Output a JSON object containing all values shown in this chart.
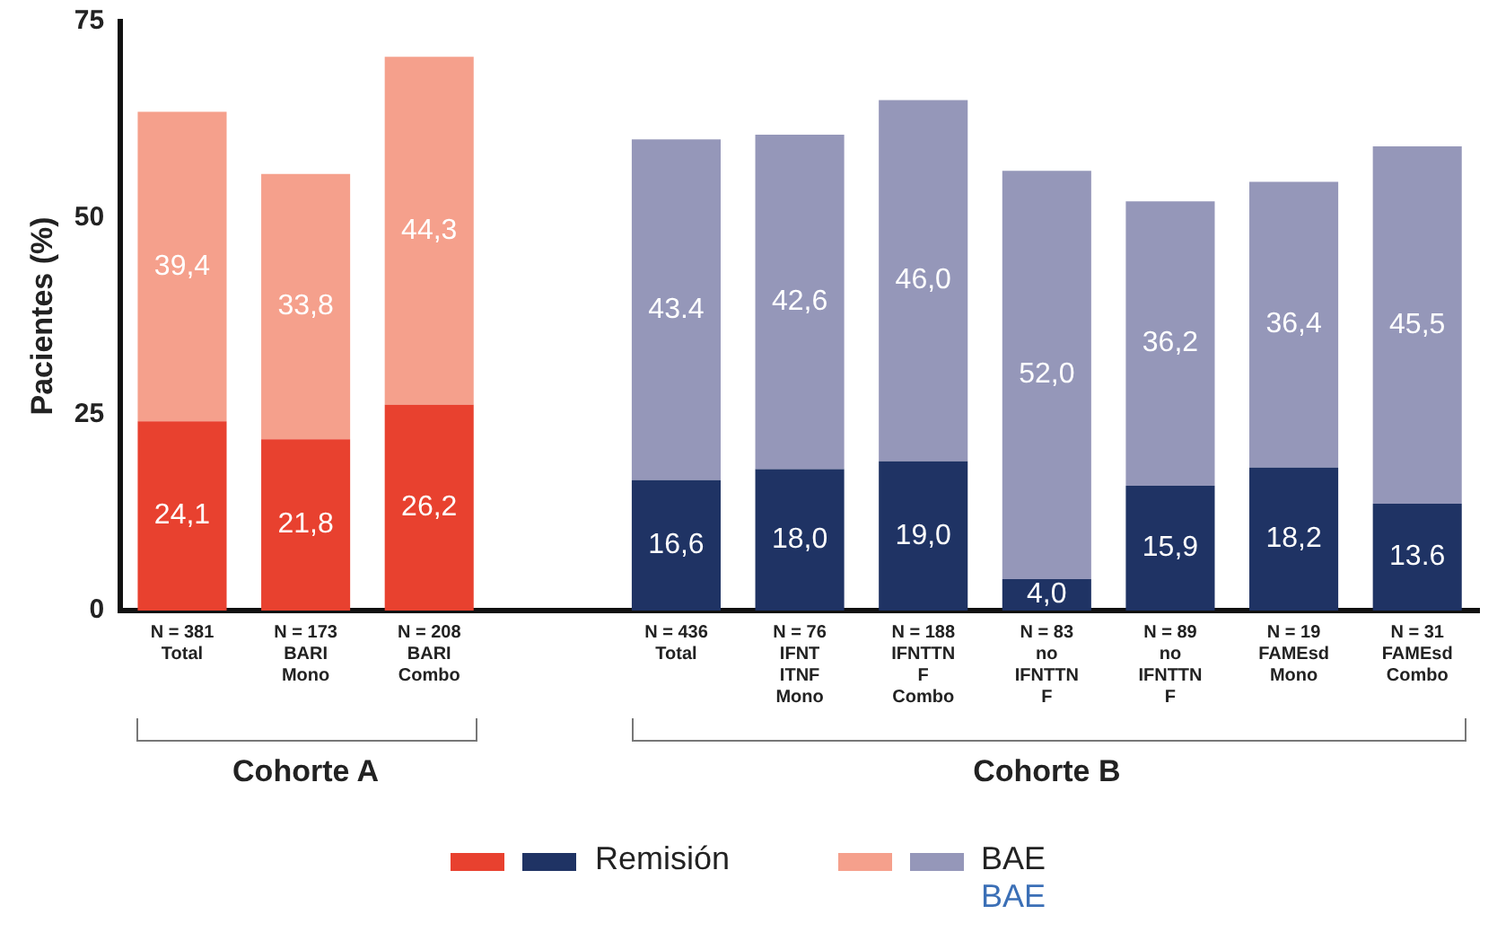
{
  "chart_data": {
    "type": "bar",
    "stacked": true,
    "ylabel": "Pacientes (%)",
    "categories": [
      "N = 381\nTotal",
      "N = 173\nBARI\nMono",
      "N = 208\nBARI\nCombo",
      null,
      "N = 436\nTotal",
      "N = 76\nIFNT\nITNF\nMono",
      "N = 188\nIFNTTN\nF\nCombo",
      "N = 83\nno\nIFNTTN\nF",
      "N = 89\nno\nIFNTTN\nF",
      "N = 19\nFAMEsd\nMono",
      "N = 31\nFAMEsd\nCombo"
    ],
    "series": [
      {
        "name": "Remisión",
        "colors": [
          "#e8412f",
          "#e8412f",
          "#e8412f",
          "#e8412f",
          "#1f3364",
          "#1f3364",
          "#1f3364",
          "#1f3364",
          "#1f3364",
          "#1f3364",
          "#1f3364"
        ],
        "values": [
          24.1,
          21.8,
          26.2,
          null,
          16.6,
          18.0,
          19.0,
          4.0,
          15.9,
          18.2,
          13.6
        ],
        "value_labels": [
          "24,1",
          "21,8",
          "26,2",
          null,
          "16,6",
          "18,0",
          "19,0",
          "4,0",
          "15,9",
          "18,2",
          "13.6"
        ]
      },
      {
        "name": "BAE",
        "colors": [
          "#f5a08c",
          "#f5a08c",
          "#f5a08c",
          "#f5a08c",
          "#9597b9",
          "#9597b9",
          "#9597b9",
          "#9597b9",
          "#9597b9",
          "#9597b9",
          "#9597b9"
        ],
        "values": [
          39.4,
          33.8,
          44.3,
          null,
          43.4,
          42.6,
          46.0,
          52.0,
          36.2,
          36.4,
          45.5
        ],
        "value_labels": [
          "39,4",
          "33,8",
          "44,3",
          null,
          "43.4",
          "42,6",
          "46,0",
          "52,0",
          "36,2",
          "36,4",
          "45,5"
        ]
      }
    ],
    "ylim": [
      0,
      75
    ],
    "yticks": [
      0,
      25,
      50,
      75
    ],
    "grid": false,
    "legend": "bottom",
    "annotations": [
      "Cohorte A",
      "Cohorte B",
      "BAE"
    ]
  }
}
